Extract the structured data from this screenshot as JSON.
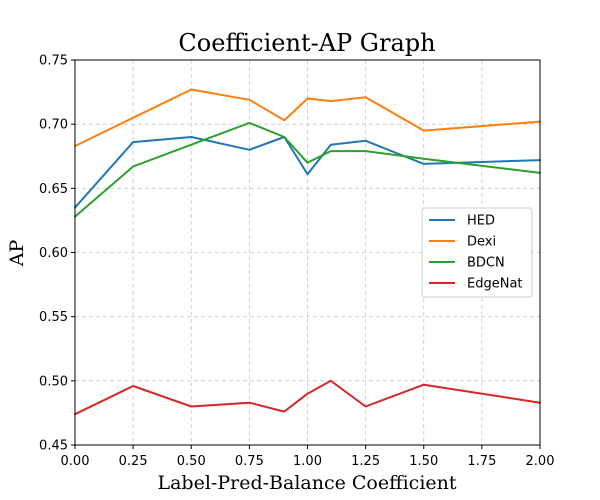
{
  "chart_data": {
    "type": "line",
    "title": "Coefficient-AP Graph",
    "xlabel": "Label-Pred-Balance Coefficient",
    "ylabel": "AP",
    "xlim": [
      0,
      2
    ],
    "ylim": [
      0.45,
      0.75
    ],
    "grid": true,
    "legend_position": "center-right",
    "xticks": [
      "0.00",
      "0.25",
      "0.50",
      "0.75",
      "1.00",
      "1.25",
      "1.50",
      "1.75",
      "2.00"
    ],
    "xtick_values": [
      0,
      0.25,
      0.5,
      0.75,
      1.0,
      1.25,
      1.5,
      1.75,
      2.0
    ],
    "yticks": [
      "0.45",
      "0.50",
      "0.55",
      "0.60",
      "0.65",
      "0.70",
      "0.75"
    ],
    "ytick_values": [
      0.45,
      0.5,
      0.55,
      0.6,
      0.65,
      0.7,
      0.75
    ],
    "x": [
      0,
      0.25,
      0.5,
      0.75,
      0.9,
      1.0,
      1.1,
      1.25,
      1.5,
      2.0
    ],
    "series": [
      {
        "name": "HED",
        "color": "#1f77b4",
        "values": [
          0.635,
          0.686,
          0.69,
          0.68,
          0.69,
          0.661,
          0.684,
          0.687,
          0.669,
          0.672
        ]
      },
      {
        "name": "Dexi",
        "color": "#ff7f0e",
        "values": [
          0.683,
          0.705,
          0.727,
          0.719,
          0.703,
          0.72,
          0.718,
          0.721,
          0.695,
          0.702
        ]
      },
      {
        "name": "BDCN",
        "color": "#2ca02c",
        "values": [
          0.628,
          0.667,
          0.684,
          0.701,
          0.69,
          0.67,
          0.679,
          0.679,
          0.673,
          0.662
        ]
      },
      {
        "name": "EdgeNat",
        "color": "#d62728",
        "values": [
          0.474,
          0.496,
          0.48,
          0.483,
          0.476,
          0.49,
          0.5,
          0.48,
          0.497,
          0.483
        ]
      }
    ]
  }
}
